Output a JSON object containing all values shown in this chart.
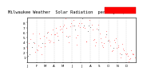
{
  "title": "Milwaukee Weather  Solar Radiation  per Day KW/m2",
  "title_fontsize": 3.8,
  "bg_color": "#ffffff",
  "plot_bg_color": "#ffffff",
  "grid_color": "#bbbbbb",
  "x_min": 0,
  "x_max": 366,
  "y_min": 0,
  "y_max": 9,
  "y_ticks": [
    1,
    2,
    3,
    4,
    5,
    6,
    7,
    8
  ],
  "y_tick_fontsize": 3.0,
  "x_tick_fontsize": 2.8,
  "legend_box_color": "#ff0000",
  "dot_color_main": "#ff0000",
  "dot_color_secondary": "#000000",
  "dot_size": 0.8,
  "months": [
    "J",
    "F",
    "M",
    "A",
    "M",
    "J",
    "J",
    "A",
    "S",
    "O",
    "N",
    "D"
  ],
  "month_starts": [
    1,
    32,
    60,
    91,
    121,
    152,
    182,
    213,
    244,
    274,
    305,
    335
  ],
  "vline_positions": [
    32,
    60,
    91,
    121,
    152,
    182,
    213,
    244,
    274,
    305,
    335
  ],
  "data_x": [
    1,
    4,
    7,
    10,
    13,
    16,
    19,
    22,
    25,
    28,
    32,
    35,
    38,
    41,
    44,
    47,
    50,
    53,
    56,
    59,
    61,
    64,
    67,
    70,
    73,
    76,
    79,
    82,
    85,
    88,
    92,
    95,
    98,
    101,
    104,
    107,
    110,
    113,
    116,
    119,
    122,
    125,
    128,
    131,
    134,
    137,
    140,
    143,
    146,
    149,
    153,
    156,
    159,
    162,
    165,
    168,
    171,
    174,
    177,
    180,
    183,
    186,
    189,
    192,
    195,
    198,
    201,
    204,
    207,
    210,
    214,
    217,
    220,
    223,
    226,
    229,
    232,
    235,
    238,
    241,
    245,
    248,
    251,
    254,
    257,
    260,
    263,
    266,
    269,
    272,
    275,
    278,
    281,
    284,
    287,
    290,
    293,
    296,
    299,
    302,
    306,
    309,
    312,
    315,
    318,
    321,
    324,
    327,
    330,
    333,
    336,
    339,
    342,
    345,
    348,
    351,
    354,
    357,
    360,
    363
  ],
  "data_y": [
    2.1,
    1.5,
    3.8,
    2.5,
    4.5,
    3.2,
    5.5,
    4.0,
    3.0,
    2.0,
    2.8,
    3.5,
    4.2,
    5.5,
    4.0,
    3.2,
    2.5,
    4.8,
    5.2,
    3.5,
    4.0,
    5.2,
    6.0,
    5.5,
    4.5,
    3.2,
    4.5,
    6.2,
    5.8,
    4.2,
    5.8,
    6.5,
    7.0,
    6.2,
    5.0,
    4.2,
    5.5,
    6.8,
    7.2,
    6.0,
    6.5,
    7.5,
    8.0,
    7.2,
    6.0,
    5.0,
    4.0,
    5.5,
    7.0,
    7.8,
    7.5,
    8.2,
    7.8,
    6.8,
    5.5,
    4.5,
    5.8,
    7.2,
    8.0,
    7.5,
    8.0,
    8.5,
    7.8,
    7.0,
    6.0,
    5.0,
    4.5,
    6.0,
    7.5,
    8.0,
    7.8,
    7.2,
    6.5,
    5.5,
    4.5,
    3.8,
    5.0,
    6.5,
    7.5,
    7.0,
    6.5,
    5.5,
    4.2,
    3.5,
    2.8,
    4.0,
    5.5,
    6.2,
    5.8,
    4.5,
    5.0,
    4.2,
    3.5,
    2.5,
    1.8,
    3.0,
    4.5,
    5.0,
    4.2,
    3.2,
    3.5,
    2.8,
    2.0,
    1.5,
    2.5,
    3.5,
    3.0,
    2.2,
    1.5,
    2.0,
    2.0,
    1.5,
    1.0,
    0.8,
    1.5,
    2.0,
    1.8,
    1.2,
    0.8,
    1.2
  ]
}
